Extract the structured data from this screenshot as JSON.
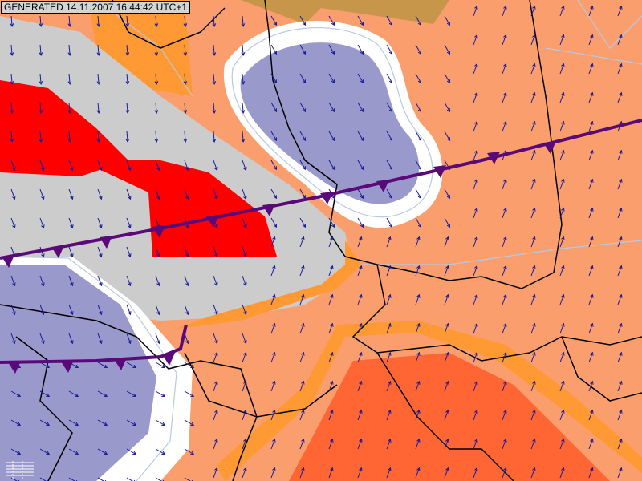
{
  "header": {
    "generated_label": "GENERATED 14.11.2007 16:44:42 UTC+1"
  },
  "map": {
    "type": "weather-map",
    "layers": [
      "temperature-shading",
      "wind-arrows",
      "country-borders",
      "cold-fronts"
    ],
    "colors": {
      "background": "#fa9e6e",
      "cold": "#9999cc",
      "cold_light": "#ccccf0",
      "neutral": "#cccccc",
      "warm_red": "#ff0000",
      "warm_orange": "#ff6633",
      "band_orange": "#ff9933",
      "brown": "#c8964a",
      "front": "#5a0a78",
      "arrow": "#1a1a9a",
      "border": "#000000",
      "isoline": "#b8c8e0"
    }
  }
}
